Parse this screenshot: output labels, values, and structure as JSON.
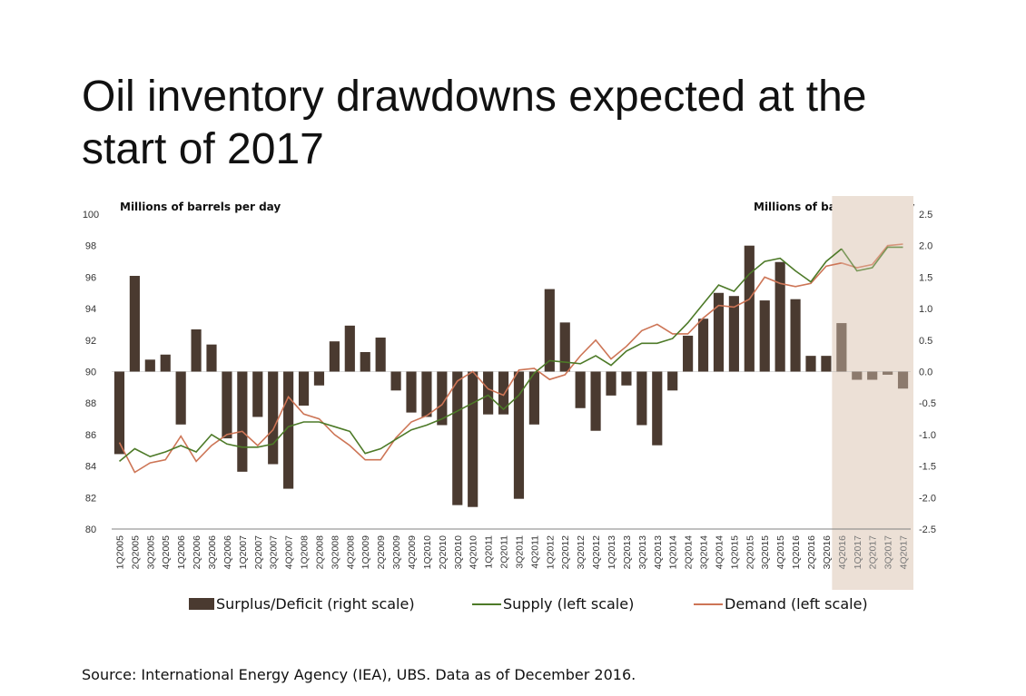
{
  "title": "Oil inventory drawdowns expected at the start of 2017",
  "source": "Source: International Energy Agency (IEA), UBS. Data as of December 2016.",
  "colors": {
    "bar": "#4a3a30",
    "bar_forecast": "#8c7a6d",
    "supply": "#4d7a28",
    "demand": "#cd7556",
    "forecast_bg": "#ece0d6",
    "axis": "#808080"
  },
  "chart_data": {
    "type": "bar",
    "title": "Oil inventory drawdowns expected at the start of 2017",
    "ylabel_left": "Millions of barrels per day",
    "ylabel_right": "Millions of barrels per day",
    "ylim_left": [
      80,
      100
    ],
    "ylim_right": [
      -2.5,
      2.5
    ],
    "yticks_left": [
      "100",
      "98",
      "96",
      "94",
      "92",
      "90",
      "88",
      "86",
      "84",
      "82",
      "80"
    ],
    "yticks_right": [
      "2.5",
      "2.0",
      "1.5",
      "1.0",
      "0.5",
      "0.0",
      "-0.5",
      "-1.0",
      "-1.5",
      "-2.0",
      "-2.5"
    ],
    "categories": [
      "1Q2005",
      "2Q2005",
      "3Q2005",
      "4Q2005",
      "1Q2006",
      "2Q2006",
      "3Q2006",
      "4Q2006",
      "1Q2007",
      "2Q2007",
      "3Q2007",
      "4Q2007",
      "1Q2008",
      "2Q2008",
      "3Q2008",
      "4Q2008",
      "1Q2009",
      "2Q2009",
      "3Q2009",
      "4Q2009",
      "1Q2010",
      "2Q2010",
      "3Q2010",
      "4Q2010",
      "1Q2011",
      "2Q2011",
      "3Q2011",
      "4Q2011",
      "1Q2012",
      "2Q2012",
      "3Q2012",
      "4Q2012",
      "1Q2013",
      "2Q2013",
      "3Q2013",
      "4Q2013",
      "1Q2014",
      "2Q2014",
      "3Q2014",
      "4Q2014",
      "1Q2015",
      "2Q2015",
      "3Q2015",
      "4Q2015",
      "1Q2016",
      "2Q2016",
      "3Q2016",
      "4Q2016",
      "1Q2017",
      "2Q2017",
      "3Q2017",
      "4Q2017"
    ],
    "forecast_start_index": 47,
    "legend_position": "bottom",
    "series": [
      {
        "name": "Surplus/Deficit (right scale)",
        "type": "bar",
        "axis": "right",
        "values": [
          -1.31,
          1.52,
          0.19,
          0.27,
          -0.84,
          0.67,
          0.43,
          -1.06,
          -1.59,
          -0.72,
          -1.47,
          -1.86,
          -0.54,
          -0.22,
          0.48,
          0.73,
          0.31,
          0.54,
          -0.3,
          -0.65,
          -0.72,
          -0.85,
          -2.12,
          -2.15,
          -0.68,
          -0.68,
          -2.02,
          -0.84,
          1.31,
          0.78,
          -0.58,
          -0.94,
          -0.38,
          -0.22,
          -0.85,
          -1.17,
          -0.3,
          0.57,
          0.84,
          1.25,
          1.2,
          2.0,
          1.13,
          1.74,
          1.15,
          0.25,
          0.25,
          0.77,
          -0.13,
          -0.13,
          -0.05,
          -0.27
        ]
      },
      {
        "name": "Supply (left scale)",
        "type": "line",
        "axis": "left",
        "values": [
          84.3,
          85.1,
          84.6,
          84.9,
          85.3,
          84.9,
          86.0,
          85.4,
          85.2,
          85.2,
          85.4,
          86.5,
          86.8,
          86.8,
          86.5,
          86.2,
          84.8,
          85.1,
          85.7,
          86.3,
          86.6,
          87.0,
          87.5,
          88.0,
          88.5,
          87.6,
          88.5,
          89.9,
          90.7,
          90.6,
          90.5,
          91.0,
          90.4,
          91.3,
          91.8,
          91.8,
          92.1,
          93.1,
          94.3,
          95.5,
          95.1,
          96.2,
          97.0,
          97.2,
          96.4,
          95.7,
          97.0,
          97.8,
          96.4,
          96.6,
          97.9,
          97.9
        ]
      },
      {
        "name": "Demand (left scale)",
        "type": "line",
        "axis": "left",
        "values": [
          85.5,
          83.6,
          84.2,
          84.4,
          85.9,
          84.3,
          85.3,
          86.0,
          86.2,
          85.3,
          86.3,
          88.4,
          87.3,
          87.0,
          86.0,
          85.3,
          84.4,
          84.4,
          85.8,
          86.8,
          87.2,
          87.9,
          89.4,
          90.0,
          88.9,
          88.5,
          90.1,
          90.2,
          89.5,
          89.8,
          91.0,
          92.0,
          90.8,
          91.6,
          92.6,
          93.0,
          92.4,
          92.4,
          93.4,
          94.2,
          94.1,
          94.6,
          96.0,
          95.6,
          95.4,
          95.6,
          96.7,
          96.9,
          96.6,
          96.8,
          98.0,
          98.1
        ]
      }
    ]
  }
}
